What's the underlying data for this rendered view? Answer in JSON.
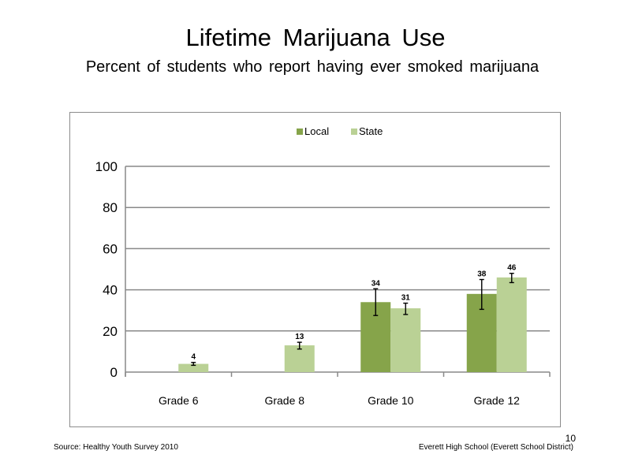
{
  "slide": {
    "title": "Lifetime  Marijuana  Use",
    "subtitle": "Percent  of students  who report having  ever smoked  marijuana",
    "source": "Source: Healthy Youth Survey 2010",
    "school": "Everett High School (Everett School District)",
    "page_number": "10"
  },
  "colors": {
    "local": "#86a44a",
    "state": "#bad195",
    "grid": "#898989",
    "frame": "#8c8c8c"
  },
  "chart_data": {
    "type": "bar",
    "title": "",
    "xlabel": "",
    "ylabel": "",
    "ylim": [
      0,
      100
    ],
    "yticks": [
      0,
      20,
      40,
      60,
      80,
      100
    ],
    "grid": true,
    "legend_position": "top-center",
    "categories": [
      "Grade 6",
      "Grade 8",
      "Grade 10",
      "Grade 12"
    ],
    "series": [
      {
        "name": "Local",
        "values": [
          null,
          null,
          34,
          38
        ],
        "error_low": [
          null,
          null,
          27.5,
          30.5
        ],
        "error_high": [
          null,
          null,
          40.5,
          45
        ],
        "labels": [
          "",
          "",
          "34",
          "38"
        ]
      },
      {
        "name": "State",
        "values": [
          4,
          13,
          31,
          46
        ],
        "error_low": [
          3.3,
          11.2,
          28,
          43.5
        ],
        "error_high": [
          4.7,
          14.5,
          33.5,
          48
        ],
        "labels": [
          "4",
          "13",
          "31",
          "46"
        ]
      }
    ]
  }
}
